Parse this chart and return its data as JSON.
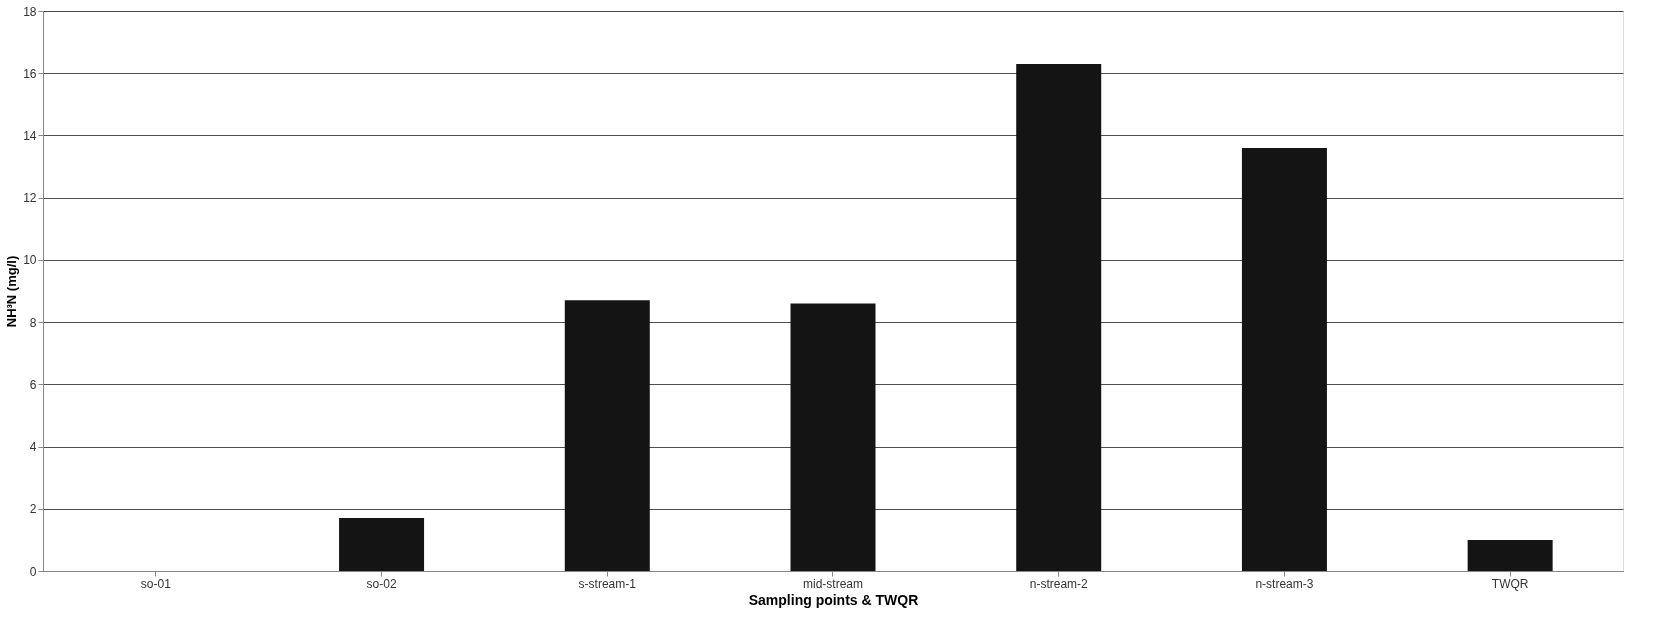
{
  "chart_data": {
    "type": "bar",
    "xlabel": "Sampling points & TWQR",
    "ylabel": "NH³N (mg/l)",
    "categories": [
      "so-01",
      "so-02",
      "s-stream-1",
      "mid-stream",
      "n-stream-2",
      "n-stream-3",
      "TWQR"
    ],
    "values": [
      0,
      1.7,
      8.7,
      8.6,
      16.3,
      13.6,
      1.0
    ],
    "color": "#141414",
    "ylim": [
      0,
      18
    ],
    "yticks": [
      0,
      2,
      4,
      6,
      8,
      10,
      12,
      14,
      16,
      18
    ],
    "grid": "y"
  }
}
